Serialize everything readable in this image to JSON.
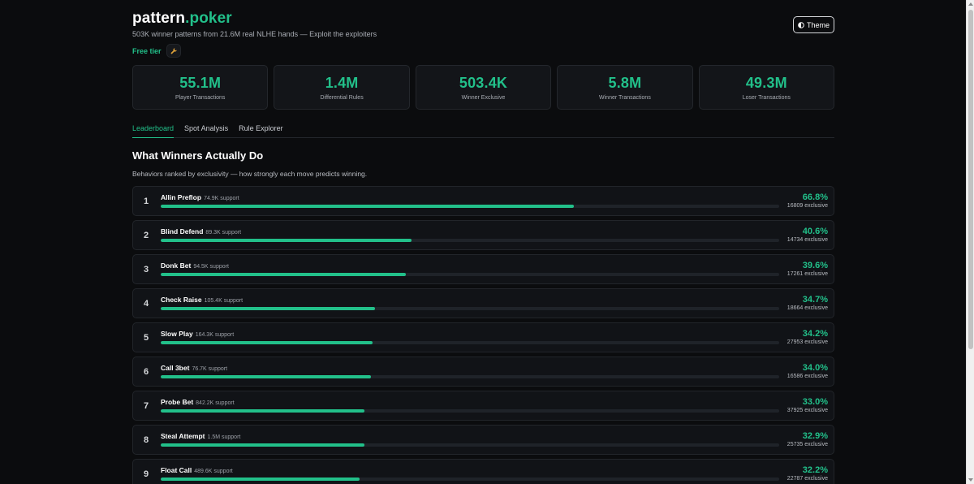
{
  "header": {
    "brand_main": "pattern",
    "brand_accent": ".poker",
    "tagline": "503K winner patterns from 21.6M real NLHE hands — Exploit the exploiters",
    "tier_label": "Free tier",
    "tier_icon": "wrench-icon",
    "theme_label": "Theme",
    "theme_icon": "half-circle-icon"
  },
  "stats": [
    {
      "value": "55.1M",
      "label": "Player Transactions"
    },
    {
      "value": "1.4M",
      "label": "Differential Rules"
    },
    {
      "value": "503.4K",
      "label": "Winner Exclusive"
    },
    {
      "value": "5.8M",
      "label": "Winner Transactions"
    },
    {
      "value": "49.3M",
      "label": "Loser Transactions"
    }
  ],
  "tabs": [
    {
      "label": "Leaderboard",
      "active": true
    },
    {
      "label": "Spot Analysis",
      "active": false
    },
    {
      "label": "Rule Explorer",
      "active": false
    }
  ],
  "section": {
    "title": "What Winners Actually Do",
    "subtitle": "Behaviors ranked by exclusivity — how strongly each move predicts winning."
  },
  "rows": [
    {
      "rank": "1",
      "name": "Allin Preflop",
      "support": "74.9K support",
      "pct": "66.8%",
      "excl": "16809 exclusive",
      "fill": 0.668
    },
    {
      "rank": "2",
      "name": "Blind Defend",
      "support": "89.3K support",
      "pct": "40.6%",
      "excl": "14734 exclusive",
      "fill": 0.406
    },
    {
      "rank": "3",
      "name": "Donk Bet",
      "support": "94.5K support",
      "pct": "39.6%",
      "excl": "17261 exclusive",
      "fill": 0.396
    },
    {
      "rank": "4",
      "name": "Check Raise",
      "support": "105.4K support",
      "pct": "34.7%",
      "excl": "18664 exclusive",
      "fill": 0.347
    },
    {
      "rank": "5",
      "name": "Slow Play",
      "support": "164.3K support",
      "pct": "34.2%",
      "excl": "27953 exclusive",
      "fill": 0.342
    },
    {
      "rank": "6",
      "name": "Call 3bet",
      "support": "76.7K support",
      "pct": "34.0%",
      "excl": "16586 exclusive",
      "fill": 0.34
    },
    {
      "rank": "7",
      "name": "Probe Bet",
      "support": "842.2K support",
      "pct": "33.0%",
      "excl": "37925 exclusive",
      "fill": 0.33
    },
    {
      "rank": "8",
      "name": "Steal Attempt",
      "support": "1.5M support",
      "pct": "32.9%",
      "excl": "25735 exclusive",
      "fill": 0.329
    },
    {
      "rank": "9",
      "name": "Float Call",
      "support": "489.6K support",
      "pct": "32.2%",
      "excl": "22787 exclusive",
      "fill": 0.322
    }
  ],
  "colors": {
    "accent": "#22c08a",
    "background": "#0b0c0e",
    "card": "#131519"
  }
}
